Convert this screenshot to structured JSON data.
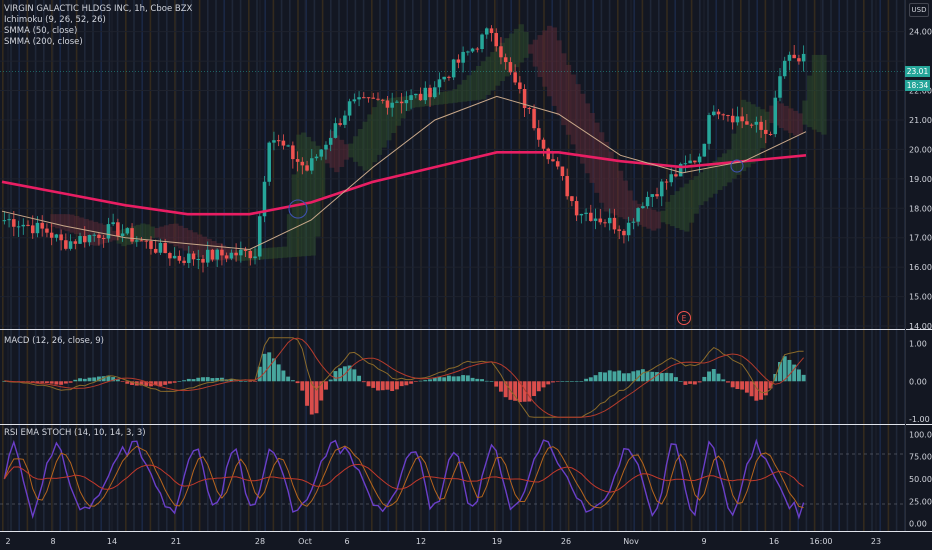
{
  "instrument": {
    "title": "VIRGIN GALACTIC HLDGS INC, 1h, Cboe BZX",
    "currency": "USD",
    "last_price": "23.01",
    "countdown": "18:34"
  },
  "indicators": {
    "ichimoku": "Ichimoku (9, 26, 52, 26)",
    "smma50": "SMMA (50, close)",
    "smma200": "SMMA (200, close)",
    "macd": "MACD (12, 26, close, 9)",
    "stoch": "RSI EMA STOCH (14, 10, 14, 3, 3)"
  },
  "earnings_marker": "E",
  "colors": {
    "background": "#131722",
    "up": "#26a69a",
    "down": "#ef5350",
    "smma200": "#e91e63",
    "smma50": "#c9a88a",
    "cloud_bull": "#2d4a2c",
    "cloud_bear": "#5a2a35",
    "macd_line": "#8a6a2a",
    "signal_line": "#b33b2c",
    "stoch_k": "#6a3fc9",
    "stoch_d": "#b5651d",
    "stoch_ema": "#c0392b",
    "accent_price": "#26a69a"
  },
  "chart_data": [
    {
      "type": "candlestick",
      "panel": "price",
      "y_axis_ticks": [
        "24.00",
        "23.00",
        "22.00",
        "21.00",
        "20.00",
        "19.00",
        "18.00",
        "17.00",
        "16.00",
        "15.00",
        "14.00"
      ],
      "ylim": [
        14,
        24.6
      ],
      "x_axis_ticks": [
        "2",
        "8",
        "14",
        "21",
        "28",
        "Oct",
        "6",
        "12",
        "19",
        "26",
        "Nov",
        "9",
        "16",
        "16:00",
        "23"
      ],
      "approx_close_path": [
        {
          "x": "2",
          "y": 17.6
        },
        {
          "x": "8",
          "y": 17.2
        },
        {
          "x": "8",
          "y": 16.8
        },
        {
          "x": "14",
          "y": 17.3
        },
        {
          "x": "21",
          "y": 16.3
        },
        {
          "x": "28",
          "y": 16.5
        },
        {
          "x": "28",
          "y": 20.5
        },
        {
          "x": "Oct",
          "y": 19.3
        },
        {
          "x": "6",
          "y": 21.5
        },
        {
          "x": "12",
          "y": 21.8
        },
        {
          "x": "19",
          "y": 24.1
        },
        {
          "x": "19",
          "y": 22.8
        },
        {
          "x": "26",
          "y": 19.0
        },
        {
          "x": "26",
          "y": 18.0
        },
        {
          "x": "Nov",
          "y": 17.3
        },
        {
          "x": "Nov",
          "y": 18.2
        },
        {
          "x": "9",
          "y": 19.8
        },
        {
          "x": "9",
          "y": 21.5
        },
        {
          "x": "16",
          "y": 20.5
        },
        {
          "x": "16",
          "y": 23.01
        }
      ],
      "series": [
        {
          "name": "SMMA (200, close)",
          "values": [
            18.9,
            18.5,
            18.1,
            17.8,
            17.8,
            18.2,
            18.9,
            19.4,
            19.9,
            19.9,
            19.6,
            19.4,
            19.6,
            19.8
          ]
        },
        {
          "name": "SMMA (50, close)",
          "values": [
            17.9,
            17.4,
            17.0,
            16.8,
            16.6,
            17.6,
            19.4,
            21.0,
            21.8,
            21.2,
            19.8,
            19.2,
            19.6,
            20.6
          ]
        }
      ]
    },
    {
      "type": "histogram+line",
      "panel": "macd",
      "y_axis_ticks": [
        "1.00",
        "0.00",
        "-1.00"
      ],
      "ylim": [
        -1.05,
        1.25
      ]
    },
    {
      "type": "line",
      "panel": "stoch",
      "y_axis_ticks": [
        "100.00",
        "75.00",
        "50.00",
        "25.00",
        "0.00"
      ],
      "ylim": [
        -5,
        105
      ]
    }
  ]
}
